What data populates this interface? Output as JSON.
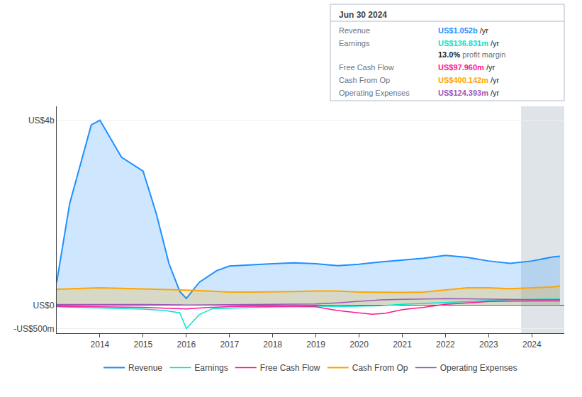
{
  "chart_data": {
    "type": "line",
    "xlim": [
      2013.0,
      2024.75
    ],
    "xticks": [
      2014,
      2015,
      2016,
      2017,
      2018,
      2019,
      2020,
      2021,
      2022,
      2023,
      2024
    ],
    "ylim": [
      -600,
      4300
    ],
    "yticks": [
      {
        "value": 4000,
        "label": "US$4b"
      },
      {
        "value": 0,
        "label": "US$0"
      },
      {
        "value": -500,
        "label": "-US$500m"
      }
    ],
    "grid": "y",
    "legend": "bottom",
    "shaded_x": [
      2023.75,
      2024.75
    ],
    "series": [
      {
        "name": "Revenue",
        "color": "#1e90ff",
        "type": "area",
        "x": [
          2013.0,
          2013.3,
          2013.8,
          2014.0,
          2014.5,
          2015.0,
          2015.3,
          2015.6,
          2015.85,
          2016.0,
          2016.3,
          2016.7,
          2017.0,
          2017.5,
          2018.0,
          2018.5,
          2019.0,
          2019.5,
          2020.0,
          2020.5,
          2021.0,
          2021.5,
          2022.0,
          2022.5,
          2023.0,
          2023.5,
          2024.0,
          2024.5,
          2024.65
        ],
        "values": [
          500,
          2200,
          3900,
          4000,
          3200,
          2900,
          2000,
          900,
          300,
          150,
          500,
          750,
          850,
          880,
          900,
          920,
          900,
          860,
          890,
          940,
          980,
          1020,
          1080,
          1040,
          960,
          910,
          960,
          1050,
          1060
        ]
      },
      {
        "name": "Earnings",
        "color": "#00e5cc",
        "type": "line",
        "x": [
          2013.0,
          2013.5,
          2014.0,
          2014.5,
          2015.0,
          2015.5,
          2015.85,
          2016.0,
          2016.3,
          2016.6,
          2017.0,
          2017.5,
          2018.0,
          2018.5,
          2019.0,
          2019.5,
          2020.0,
          2020.5,
          2021.0,
          2021.5,
          2022.0,
          2022.5,
          2023.0,
          2023.5,
          2024.0,
          2024.5,
          2024.65
        ],
        "values": [
          -30,
          -40,
          -50,
          -60,
          -80,
          -110,
          -160,
          -500,
          -200,
          -70,
          -55,
          -45,
          -35,
          -25,
          -15,
          -25,
          -15,
          -5,
          25,
          45,
          65,
          85,
          105,
          125,
          132,
          137,
          137
        ]
      },
      {
        "name": "Free Cash Flow",
        "color": "#ff1493",
        "type": "line",
        "x": [
          2013.0,
          2014.0,
          2015.0,
          2015.5,
          2015.9,
          2016.0,
          2016.5,
          2017.0,
          2017.5,
          2018.0,
          2018.5,
          2019.0,
          2019.5,
          2020.0,
          2020.3,
          2020.6,
          2021.0,
          2021.5,
          2022.0,
          2022.5,
          2023.0,
          2023.5,
          2024.0,
          2024.5,
          2024.65
        ],
        "values": [
          -20,
          -30,
          -40,
          -60,
          -80,
          -75,
          -45,
          -25,
          -20,
          -20,
          -20,
          -30,
          -110,
          -160,
          -190,
          -170,
          -90,
          -40,
          25,
          55,
          85,
          92,
          97,
          98,
          98
        ]
      },
      {
        "name": "Cash From Op",
        "color": "#ffa500",
        "type": "area",
        "x": [
          2013.0,
          2013.5,
          2014.0,
          2014.5,
          2015.0,
          2015.5,
          2016.0,
          2016.5,
          2017.0,
          2017.5,
          2018.0,
          2018.5,
          2019.0,
          2019.5,
          2020.0,
          2020.5,
          2021.0,
          2021.5,
          2022.0,
          2022.5,
          2023.0,
          2023.5,
          2024.0,
          2024.5,
          2024.65
        ],
        "values": [
          350,
          370,
          380,
          370,
          360,
          340,
          330,
          310,
          290,
          290,
          290,
          300,
          310,
          310,
          290,
          280,
          280,
          290,
          340,
          380,
          380,
          360,
          380,
          400,
          420
        ]
      },
      {
        "name": "Operating Expenses",
        "color": "#9b59b6",
        "type": "line",
        "x": [
          2013.0,
          2014.0,
          2015.0,
          2015.5,
          2016.0,
          2017.0,
          2018.0,
          2019.0,
          2019.5,
          2020.0,
          2020.5,
          2021.0,
          2021.5,
          2022.0,
          2022.5,
          2023.0,
          2023.5,
          2024.0,
          2024.5,
          2024.65
        ],
        "values": [
          20,
          25,
          20,
          15,
          10,
          15,
          20,
          30,
          55,
          85,
          120,
          130,
          140,
          148,
          143,
          133,
          128,
          124,
          124,
          124
        ]
      }
    ],
    "info_box": {
      "title": "Jun 30 2024",
      "rows": [
        {
          "label": "Revenue",
          "value": "US$1.052b",
          "unit": "/yr"
        },
        {
          "label": "Earnings",
          "value": "US$136.831m",
          "unit": "/yr",
          "note_value": "13.0%",
          "note": "profit margin"
        },
        {
          "label": "Free Cash Flow",
          "value": "US$97.960m",
          "unit": "/yr"
        },
        {
          "label": "Cash From Op",
          "value": "US$400.142m",
          "unit": "/yr"
        },
        {
          "label": "Operating Expenses",
          "value": "US$124.393m",
          "unit": "/yr"
        }
      ]
    }
  }
}
